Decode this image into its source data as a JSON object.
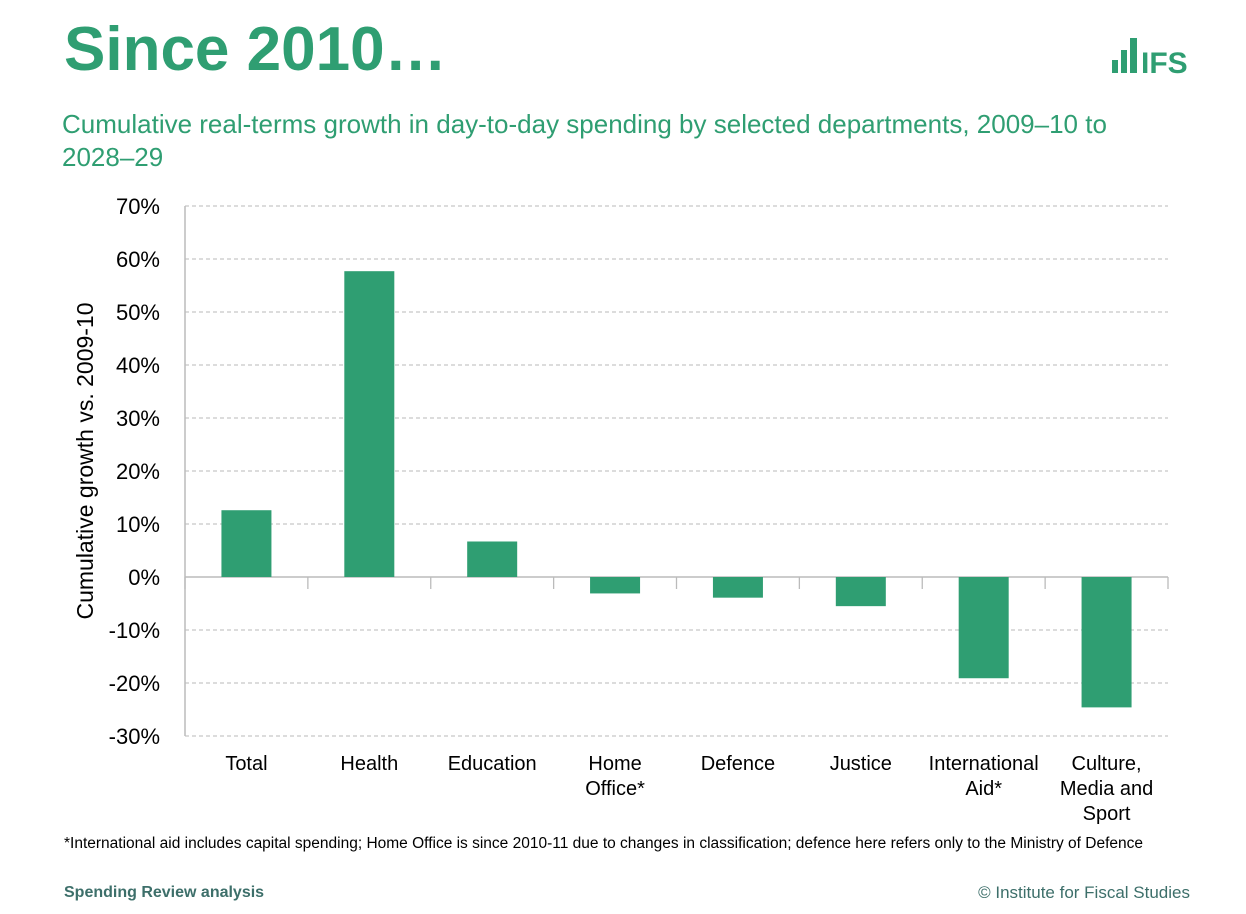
{
  "header": {
    "title": "Since 2010…",
    "subtitle": "Cumulative real-terms growth in day-to-day spending by selected departments, 2009–10 to 2028–29",
    "logo_text": "IFS"
  },
  "footer": {
    "note": "*International aid includes capital spending; Home Office is since 2010-11 due to changes in classification; defence here refers only to the Ministry of Defence",
    "source": "Spending Review analysis",
    "copyright": "© Institute for Fiscal Studies"
  },
  "colors": {
    "bar": "#2f9e72",
    "accent": "#2f9e72"
  },
  "chart_data": {
    "type": "bar",
    "title": "",
    "xlabel": "",
    "ylabel": "Cumulative growth vs. 2009-10",
    "ylim": [
      -30,
      70
    ],
    "yticks": [
      70,
      60,
      50,
      40,
      30,
      20,
      10,
      0,
      -10,
      -20,
      -30
    ],
    "ytick_labels": [
      "70%",
      "60%",
      "50%",
      "40%",
      "30%",
      "20%",
      "10%",
      "0%",
      "-10%",
      "-20%",
      "-30%"
    ],
    "grid": true,
    "categories": [
      [
        "Total"
      ],
      [
        "Health"
      ],
      [
        "Education"
      ],
      [
        "Home",
        "Office*"
      ],
      [
        "Defence"
      ],
      [
        "Justice"
      ],
      [
        "International",
        "Aid*"
      ],
      [
        "Culture,",
        "Media and",
        "Sport"
      ]
    ],
    "values": [
      12.6,
      57.7,
      6.7,
      -3.1,
      -3.9,
      -5.5,
      -19.1,
      -24.6
    ]
  }
}
